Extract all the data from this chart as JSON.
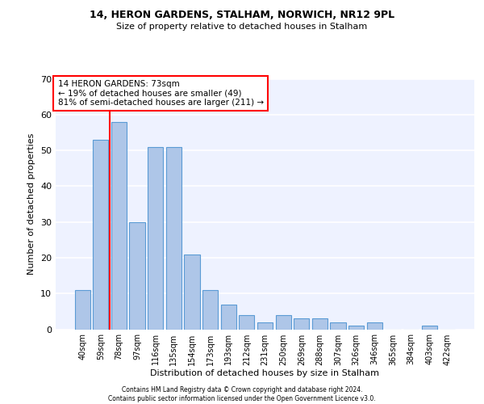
{
  "title1": "14, HERON GARDENS, STALHAM, NORWICH, NR12 9PL",
  "title2": "Size of property relative to detached houses in Stalham",
  "xlabel": "Distribution of detached houses by size in Stalham",
  "ylabel": "Number of detached properties",
  "categories": [
    "40sqm",
    "59sqm",
    "78sqm",
    "97sqm",
    "116sqm",
    "135sqm",
    "154sqm",
    "173sqm",
    "193sqm",
    "212sqm",
    "231sqm",
    "250sqm",
    "269sqm",
    "288sqm",
    "307sqm",
    "326sqm",
    "346sqm",
    "365sqm",
    "384sqm",
    "403sqm",
    "422sqm"
  ],
  "values": [
    11,
    53,
    58,
    30,
    51,
    51,
    21,
    11,
    7,
    4,
    2,
    4,
    3,
    3,
    2,
    1,
    2,
    0,
    0,
    1,
    0
  ],
  "bar_color": "#aec6e8",
  "bar_edge_color": "#5b9bd5",
  "annotation_text_line1": "14 HERON GARDENS: 73sqm",
  "annotation_text_line2": "← 19% of detached houses are smaller (49)",
  "annotation_text_line3": "81% of semi-detached houses are larger (211) →",
  "red_line_x": 1.5,
  "ylim": [
    0,
    70
  ],
  "yticks": [
    0,
    10,
    20,
    30,
    40,
    50,
    60,
    70
  ],
  "footer1": "Contains HM Land Registry data © Crown copyright and database right 2024.",
  "footer2": "Contains public sector information licensed under the Open Government Licence v3.0.",
  "background_color": "#eef2ff",
  "grid_color": "#ffffff",
  "title_fontsize": 9,
  "subtitle_fontsize": 8
}
